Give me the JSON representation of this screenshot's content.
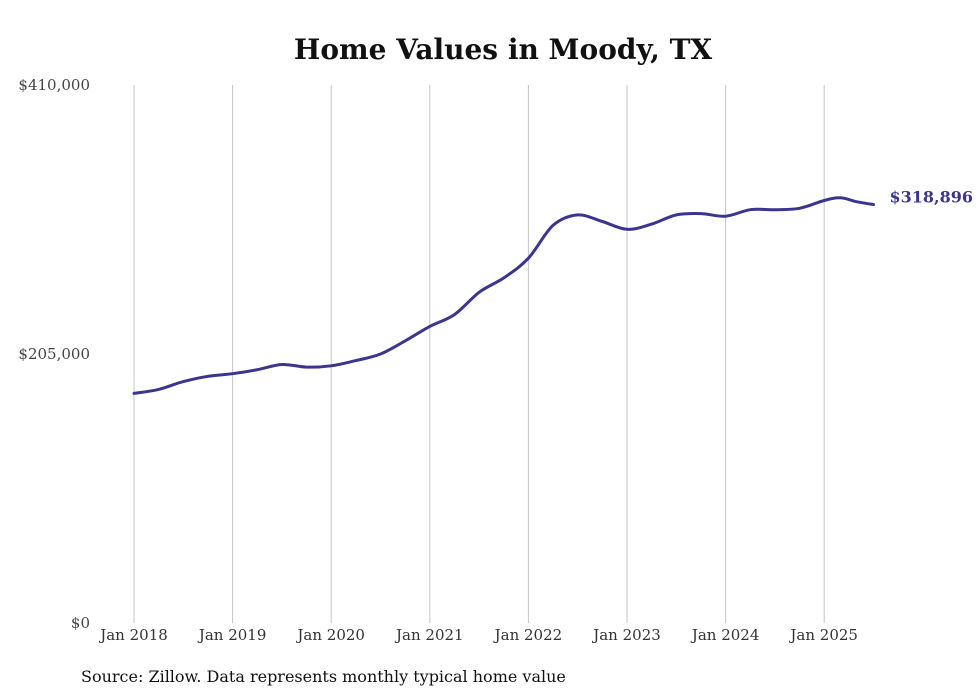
{
  "chart_data": {
    "type": "line",
    "title": "Home Values in Moody, TX",
    "xlabel": "",
    "ylabel": "",
    "ylim": [
      0,
      410000
    ],
    "y_ticks": [
      "$0",
      "$205,000",
      "$410,000"
    ],
    "y_tick_values": [
      0,
      205000,
      410000
    ],
    "x_ticks": [
      "Jan 2018",
      "Jan 2019",
      "Jan 2020",
      "Jan 2021",
      "Jan 2022",
      "Jan 2023",
      "Jan 2024",
      "Jan 2025"
    ],
    "grid": "vertical",
    "series": [
      {
        "color": "#3b3590",
        "end_label": "$318,896",
        "x": [
          "2018-01",
          "2018-04",
          "2018-07",
          "2018-10",
          "2019-01",
          "2019-04",
          "2019-07",
          "2019-10",
          "2020-01",
          "2020-04",
          "2020-07",
          "2020-10",
          "2021-01",
          "2021-04",
          "2021-07",
          "2021-10",
          "2022-01",
          "2022-04",
          "2022-07",
          "2022-10",
          "2023-01",
          "2023-04",
          "2023-07",
          "2023-10",
          "2024-01",
          "2024-04",
          "2024-07",
          "2024-10",
          "2025-01",
          "2025-03",
          "2025-05",
          "2025-07"
        ],
        "values": [
          175000,
          178000,
          184000,
          188000,
          190000,
          193000,
          197000,
          195000,
          196000,
          200000,
          205000,
          215000,
          226000,
          235000,
          252000,
          263000,
          278000,
          303000,
          311000,
          306000,
          300000,
          304000,
          311000,
          312000,
          310000,
          315000,
          315000,
          316000,
          322000,
          324000,
          321000,
          318896
        ]
      }
    ]
  },
  "source": "Source: Zillow. Data represents monthly typical home value"
}
